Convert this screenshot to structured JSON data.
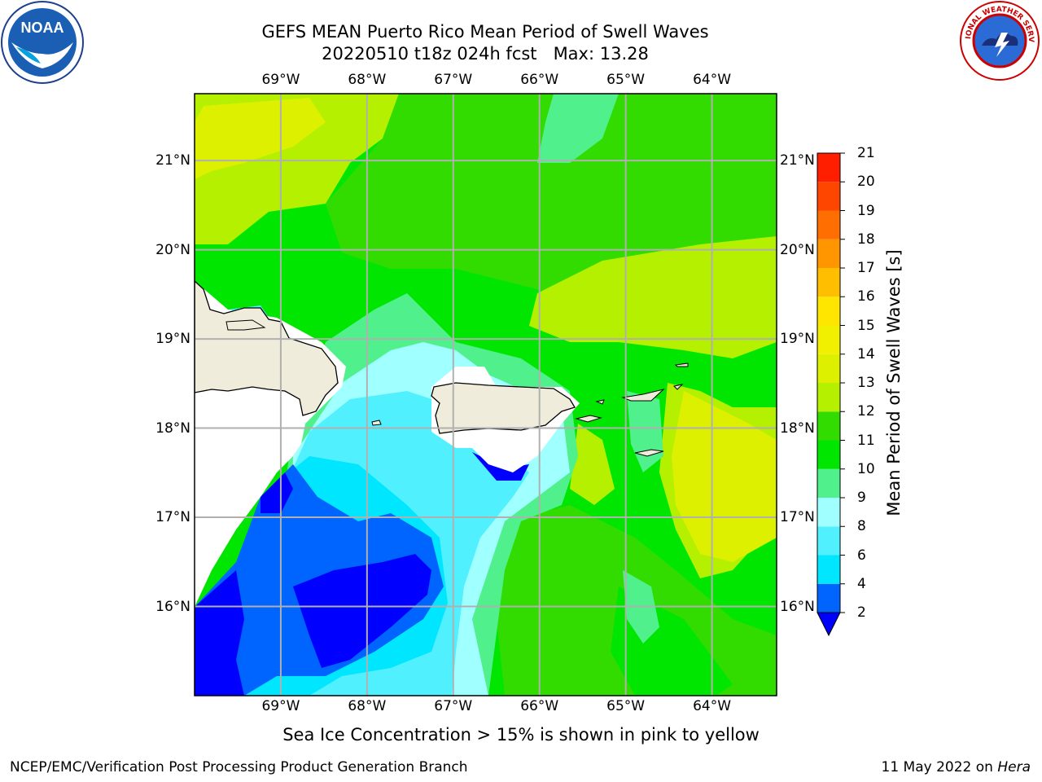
{
  "header": {
    "title_line1": "GEFS MEAN Puerto Rico Mean Period of Swell Waves",
    "title_line2": "20220510 t18z 024h fcst   Max: 13.28"
  },
  "map": {
    "lon_labels": [
      "69°W",
      "68°W",
      "67°W",
      "66°W",
      "65°W",
      "64°W"
    ],
    "lat_labels": [
      "21°N",
      "20°N",
      "19°N",
      "18°N",
      "17°N",
      "16°N"
    ],
    "extent": {
      "lon_min": -70.0,
      "lon_max": -63.25,
      "lat_min": 15.0,
      "lat_max": 21.75
    },
    "grid": true,
    "land_color": "#efecdb",
    "coastline_color": "#000000"
  },
  "colorbar": {
    "label": "Mean Period of Swell Waves [s]",
    "ticks": [
      "21",
      "20",
      "19",
      "18",
      "17",
      "16",
      "15",
      "14",
      "13",
      "12",
      "11",
      "10",
      "9",
      "8",
      "6",
      "4",
      "2"
    ],
    "levels": [
      {
        "from": 2,
        "to": 4,
        "color": "#0064ff"
      },
      {
        "from": 4,
        "to": 6,
        "color": "#00e6ff"
      },
      {
        "from": 6,
        "to": 8,
        "color": "#50f0ff"
      },
      {
        "from": 8,
        "to": 9,
        "color": "#a0ffff"
      },
      {
        "from": 9,
        "to": 10,
        "color": "#50f08c"
      },
      {
        "from": 10,
        "to": 11,
        "color": "#00e600"
      },
      {
        "from": 11,
        "to": 12,
        "color": "#32dc00"
      },
      {
        "from": 12,
        "to": 13,
        "color": "#b4f000"
      },
      {
        "from": 13,
        "to": 14,
        "color": "#dcf000"
      },
      {
        "from": 14,
        "to": 15,
        "color": "#f0f000"
      },
      {
        "from": 15,
        "to": 16,
        "color": "#ffe600"
      },
      {
        "from": 16,
        "to": 17,
        "color": "#ffbe00"
      },
      {
        "from": 17,
        "to": 18,
        "color": "#ff9600"
      },
      {
        "from": 18,
        "to": 19,
        "color": "#ff6e00"
      },
      {
        "from": 19,
        "to": 20,
        "color": "#ff4600"
      },
      {
        "from": 20,
        "to": 21,
        "color": "#ff1e00"
      }
    ],
    "under_color": "#0000ff"
  },
  "footer": {
    "note": "Sea Ice Concentration > 15% is shown in pink to yellow",
    "credit": "NCEP/EMC/Verification Post Processing Product Generation Branch",
    "date": "11 May 2022 on ",
    "machine": "Hera"
  },
  "logos": {
    "left": {
      "icon": "noaa-logo",
      "text": "NOAA"
    },
    "right": {
      "icon": "nws-logo",
      "text": "NATIONAL WEATHER SERVICE"
    }
  }
}
